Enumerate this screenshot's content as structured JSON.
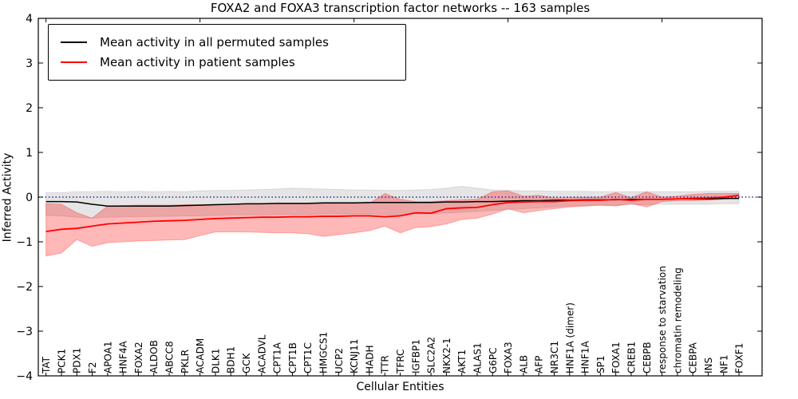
{
  "figure": {
    "title": "FOXA2 and FOXA3 transcription factor networks -- 163 samples"
  },
  "legend": {
    "items": [
      {
        "label": "Mean activity in all permuted samples",
        "color": "#000000"
      },
      {
        "label": "Mean activity in patient samples",
        "color": "#ff0000"
      }
    ]
  },
  "chart_data": {
    "type": "line",
    "title": "FOXA2 and FOXA3 transcription factor networks -- 163 samples",
    "xlabel": "Cellular Entities",
    "ylabel": "Inferred Activity",
    "ylim": [
      -4,
      4
    ],
    "grid": false,
    "legend_position": "upper left",
    "ytick_values": [
      4,
      3,
      2,
      1,
      0,
      -1,
      -2,
      -3,
      -4
    ],
    "ytick_labels": [
      "4",
      "3",
      "2",
      "1",
      "0",
      "−1",
      "−2",
      "−3",
      "−4"
    ],
    "top_tick_indices": [
      0,
      10,
      20,
      30,
      40
    ],
    "zero_line": {
      "y": 0,
      "style": "dotted",
      "color": "#00008b"
    },
    "categories": [
      "TAT",
      "PCK1",
      "PDX1",
      "F2",
      "APOA1",
      "HNF4A",
      "FOXA2",
      "ALDOB",
      "ABCC8",
      "PKLR",
      "ACADM",
      "DLK1",
      "BDH1",
      "GCK",
      "ACADVL",
      "CPT1A",
      "CPT1B",
      "CPT1C",
      "HMGCS1",
      "UCP2",
      "KCNJ11",
      "HADH",
      "TTR",
      "TFRC",
      "IGFBP1",
      "SLC2A2",
      "NKX2-1",
      "AKT1",
      "ALAS1",
      "G6PC",
      "FOXA3",
      "ALB",
      "AFP",
      "NR3C1",
      "HNF1A (dimer)",
      "HNF1A",
      "SP1",
      "FOXA1",
      "CREB1",
      "CEBPB",
      "response to starvation",
      "chromatin remodeling",
      "CEBPA",
      "INS",
      "NF1",
      "FOXF1"
    ],
    "series": [
      {
        "name": "Mean activity in all permuted samples",
        "color": "#000000",
        "line_width": 1.5,
        "values": [
          -0.1,
          -0.1,
          -0.11,
          -0.16,
          -0.2,
          -0.2,
          -0.2,
          -0.2,
          -0.2,
          -0.19,
          -0.18,
          -0.17,
          -0.16,
          -0.15,
          -0.15,
          -0.14,
          -0.14,
          -0.14,
          -0.13,
          -0.13,
          -0.13,
          -0.12,
          -0.12,
          -0.12,
          -0.12,
          -0.12,
          -0.11,
          -0.11,
          -0.1,
          -0.1,
          -0.09,
          -0.08,
          -0.08,
          -0.07,
          -0.07,
          -0.06,
          -0.06,
          -0.06,
          -0.05,
          -0.05,
          -0.05,
          -0.04,
          -0.04,
          -0.04,
          -0.03,
          -0.03
        ]
      },
      {
        "name": "Mean activity in patient samples",
        "color": "#ff0000",
        "line_width": 1.8,
        "values": [
          -0.77,
          -0.72,
          -0.7,
          -0.65,
          -0.6,
          -0.58,
          -0.56,
          -0.54,
          -0.53,
          -0.52,
          -0.5,
          -0.48,
          -0.47,
          -0.46,
          -0.45,
          -0.45,
          -0.44,
          -0.44,
          -0.43,
          -0.43,
          -0.42,
          -0.42,
          -0.44,
          -0.42,
          -0.35,
          -0.36,
          -0.26,
          -0.24,
          -0.23,
          -0.17,
          -0.12,
          -0.11,
          -0.1,
          -0.1,
          -0.08,
          -0.07,
          -0.07,
          -0.05,
          -0.07,
          -0.05,
          -0.05,
          -0.04,
          -0.03,
          -0.02,
          0.0,
          0.04
        ]
      }
    ],
    "bands": [
      {
        "name": "permuted-std-band",
        "color": "rgba(0,0,0,0.10)",
        "upper": [
          0.1,
          0.1,
          0.12,
          0.12,
          0.13,
          0.12,
          0.13,
          0.12,
          0.13,
          0.12,
          0.14,
          0.15,
          0.15,
          0.16,
          0.17,
          0.18,
          0.2,
          0.19,
          0.18,
          0.17,
          0.16,
          0.16,
          0.15,
          0.15,
          0.16,
          0.17,
          0.2,
          0.24,
          0.2,
          0.16,
          0.15,
          0.14,
          0.14,
          0.13,
          0.13,
          0.13,
          0.12,
          0.12,
          0.12,
          0.12,
          0.12,
          0.12,
          0.12,
          0.13,
          0.13,
          0.13
        ],
        "lower": [
          -0.41,
          -0.42,
          -0.45,
          -0.47,
          -0.45,
          -0.44,
          -0.44,
          -0.43,
          -0.43,
          -0.42,
          -0.42,
          -0.41,
          -0.4,
          -0.4,
          -0.4,
          -0.39,
          -0.39,
          -0.39,
          -0.38,
          -0.38,
          -0.38,
          -0.38,
          -0.39,
          -0.4,
          -0.38,
          -0.37,
          -0.36,
          -0.34,
          -0.32,
          -0.3,
          -0.28,
          -0.26,
          -0.24,
          -0.22,
          -0.2,
          -0.19,
          -0.18,
          -0.18,
          -0.17,
          -0.17,
          -0.16,
          -0.16,
          -0.16,
          -0.16,
          -0.15,
          -0.15
        ]
      },
      {
        "name": "patient-std-band",
        "color": "rgba(255,0,0,0.28)",
        "upper": [
          -0.15,
          -0.16,
          -0.35,
          -0.47,
          -0.2,
          -0.19,
          -0.18,
          -0.18,
          -0.18,
          -0.17,
          -0.17,
          -0.16,
          -0.16,
          -0.15,
          -0.15,
          -0.15,
          -0.15,
          -0.15,
          -0.15,
          -0.14,
          -0.14,
          -0.14,
          0.08,
          -0.05,
          -0.1,
          -0.1,
          -0.08,
          -0.06,
          -0.05,
          0.12,
          0.14,
          0.02,
          0.04,
          -0.02,
          -0.01,
          0.0,
          0.0,
          0.1,
          -0.01,
          0.12,
          0.0,
          0.02,
          0.06,
          0.08,
          0.08,
          0.08
        ],
        "lower": [
          -1.32,
          -1.25,
          -0.95,
          -1.1,
          -1.02,
          -1.0,
          -0.98,
          -0.97,
          -0.96,
          -0.95,
          -0.86,
          -0.78,
          -0.78,
          -0.78,
          -0.79,
          -0.8,
          -0.8,
          -0.82,
          -0.88,
          -0.84,
          -0.8,
          -0.75,
          -0.65,
          -0.8,
          -0.68,
          -0.66,
          -0.6,
          -0.5,
          -0.47,
          -0.38,
          -0.26,
          -0.35,
          -0.3,
          -0.26,
          -0.22,
          -0.2,
          -0.18,
          -0.2,
          -0.14,
          -0.22,
          -0.1,
          -0.08,
          -0.08,
          -0.07,
          -0.05,
          -0.02
        ]
      }
    ]
  }
}
